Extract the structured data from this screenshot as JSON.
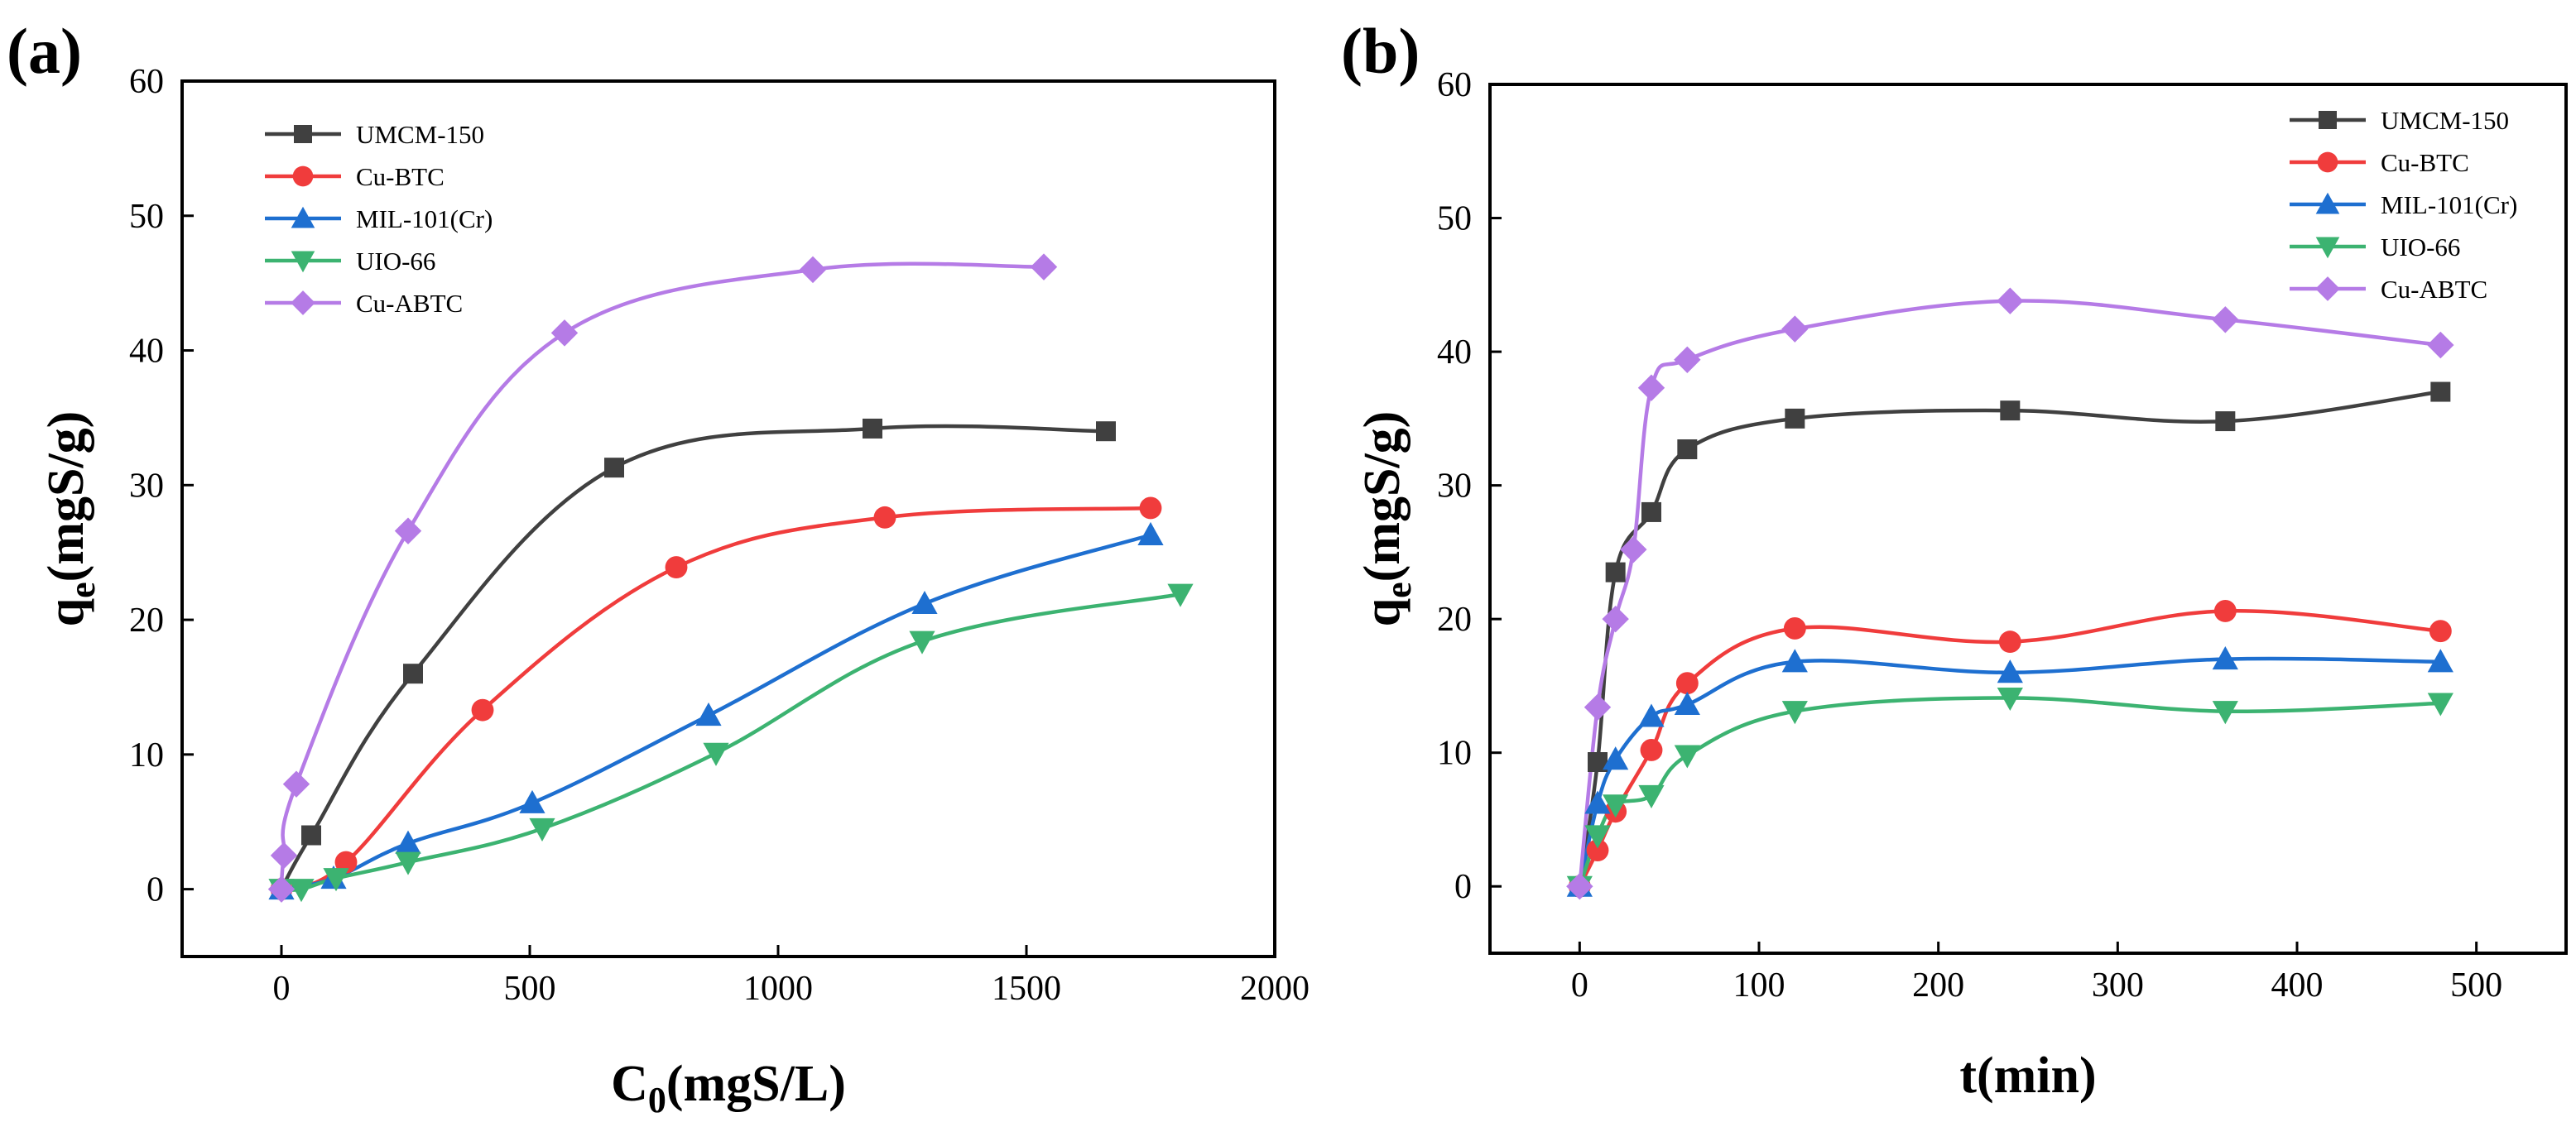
{
  "chart_data": [
    {
      "type": "line",
      "panel_label": "(a)",
      "title": "",
      "xlabel_main": "C",
      "xlabel_sub": "0",
      "xlabel_rest": "(mgS/L)",
      "ylabel_main": "q",
      "ylabel_sub": "e",
      "ylabel_rest": "(mgS/g)",
      "xlim": [
        -200,
        2000
      ],
      "ylim": [
        -5,
        60
      ],
      "xticks": [
        0,
        500,
        1000,
        1500,
        2000
      ],
      "yticks": [
        0,
        10,
        20,
        30,
        40,
        50,
        60
      ],
      "legend_position": "top-left",
      "grid": false,
      "series": [
        {
          "name": "UMCM-150",
          "color": "#404040",
          "marker": "square",
          "x": [
            0,
            60,
            265,
            670,
            1190,
            1660
          ],
          "y": [
            0,
            4,
            16,
            31.3,
            34.2,
            34
          ]
        },
        {
          "name": "Cu-BTC",
          "color": "#f03c3c",
          "marker": "circle",
          "x": [
            0,
            130,
            405,
            795,
            1215,
            1750
          ],
          "y": [
            0,
            2,
            13.3,
            23.9,
            27.6,
            28.3
          ]
        },
        {
          "name": "MIL-101(Cr)",
          "color": "#1e6fd0",
          "marker": "triangle-up",
          "x": [
            0,
            105,
            255,
            505,
            860,
            1295,
            1750
          ],
          "y": [
            0,
            0.8,
            3.4,
            6.4,
            12.9,
            21.2,
            26.3
          ]
        },
        {
          "name": "UIO-66",
          "color": "#3cb371",
          "marker": "triangle-down",
          "x": [
            0,
            40,
            110,
            255,
            525,
            875,
            1290,
            1810
          ],
          "y": [
            0,
            0,
            0.8,
            2,
            4.5,
            10.1,
            18.4,
            21.9
          ]
        },
        {
          "name": "Cu-ABTC",
          "color": "#b57be6",
          "marker": "diamond",
          "x": [
            0,
            5,
            30,
            255,
            570,
            1070,
            1535
          ],
          "y": [
            0,
            2.5,
            7.8,
            26.6,
            41.3,
            46,
            46.2
          ]
        }
      ]
    },
    {
      "type": "line",
      "panel_label": "(b)",
      "title": "",
      "xlabel_main": "t(min)",
      "xlabel_sub": "",
      "xlabel_rest": "",
      "ylabel_main": "q",
      "ylabel_sub": "e",
      "ylabel_rest": "(mgS/g)",
      "xlim": [
        -50,
        550
      ],
      "ylim": [
        -5,
        60
      ],
      "xticks": [
        0,
        100,
        200,
        300,
        400,
        500
      ],
      "yticks": [
        0,
        10,
        20,
        30,
        40,
        50,
        60
      ],
      "legend_position": "top-right",
      "grid": false,
      "series": [
        {
          "name": "UMCM-150",
          "color": "#404040",
          "marker": "square",
          "x": [
            0,
            10,
            20,
            40,
            60,
            120,
            240,
            360,
            480
          ],
          "y": [
            0,
            9.3,
            23.5,
            28,
            32.7,
            35,
            35.6,
            34.8,
            37
          ]
        },
        {
          "name": "Cu-BTC",
          "color": "#f03c3c",
          "marker": "circle",
          "x": [
            0,
            10,
            20,
            40,
            60,
            120,
            240,
            360,
            480
          ],
          "y": [
            0,
            2.7,
            5.6,
            10.2,
            15.2,
            19.3,
            18.3,
            20.6,
            19.1
          ]
        },
        {
          "name": "MIL-101(Cr)",
          "color": "#1e6fd0",
          "marker": "triangle-up",
          "x": [
            0,
            10,
            20,
            40,
            60,
            120,
            240,
            360,
            480
          ],
          "y": [
            0,
            6.2,
            9.5,
            12.7,
            13.6,
            16.8,
            16,
            17,
            16.8
          ]
        },
        {
          "name": "UIO-66",
          "color": "#3cb371",
          "marker": "triangle-down",
          "x": [
            0,
            10,
            20,
            40,
            60,
            120,
            240,
            360,
            480
          ],
          "y": [
            0,
            3.8,
            6.1,
            6.8,
            9.8,
            13.1,
            14.1,
            13.1,
            13.7
          ]
        },
        {
          "name": "Cu-ABTC",
          "color": "#b57be6",
          "marker": "diamond",
          "x": [
            0,
            10,
            20,
            30,
            40,
            60,
            120,
            240,
            360,
            480
          ],
          "y": [
            0,
            13.4,
            20,
            25.2,
            37.3,
            39.4,
            41.7,
            43.8,
            42.4,
            40.5
          ]
        }
      ]
    }
  ]
}
